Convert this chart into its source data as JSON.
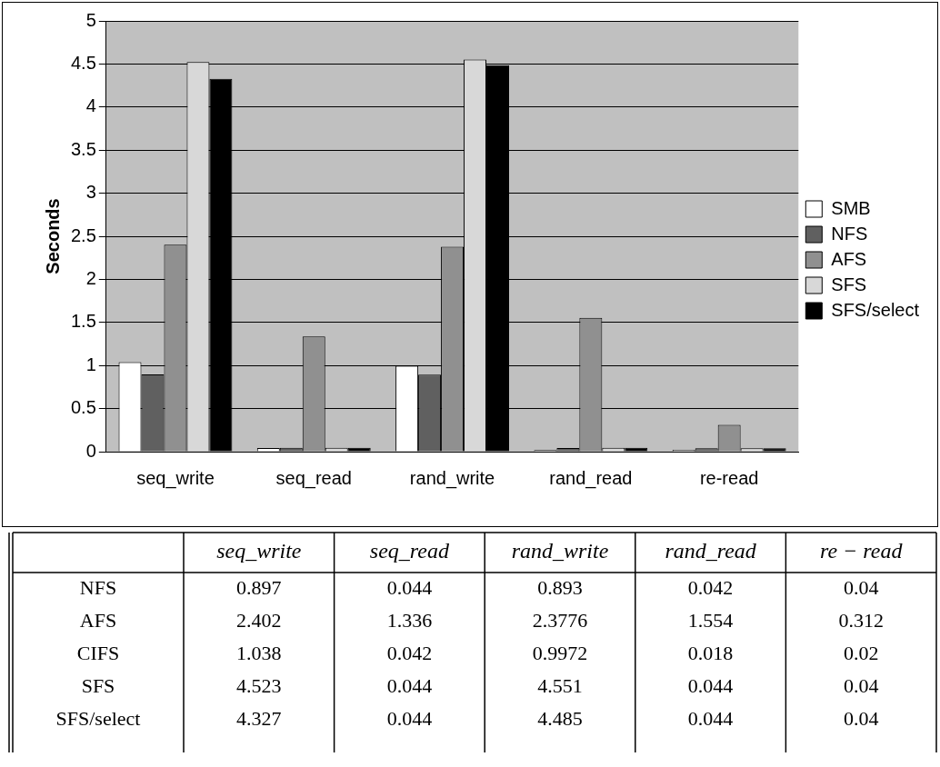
{
  "chart_data": [
    {
      "type": "bar",
      "categories": [
        "seq_write",
        "seq_read",
        "rand_write",
        "rand_read",
        "re-read"
      ],
      "ylabel": "Seconds",
      "ylim": [
        0,
        5
      ],
      "yticks": [
        0,
        0.5,
        1,
        1.5,
        2,
        2.5,
        3,
        3.5,
        4,
        4.5,
        5
      ],
      "grid": "y",
      "legend": "right",
      "series": [
        {
          "name": "SMB",
          "color": "#ffffff",
          "values": [
            1.038,
            0.042,
            0.9972,
            0.018,
            0.02
          ]
        },
        {
          "name": "NFS",
          "color": "#606060",
          "values": [
            0.897,
            0.044,
            0.893,
            0.042,
            0.04
          ]
        },
        {
          "name": "AFS",
          "color": "#909090",
          "values": [
            2.402,
            1.336,
            2.3776,
            1.554,
            0.312
          ]
        },
        {
          "name": "SFS",
          "color": "#d8d8d8",
          "values": [
            4.523,
            0.044,
            4.551,
            0.044,
            0.04
          ]
        },
        {
          "name": "SFS/select",
          "color": "#000000",
          "values": [
            4.327,
            0.044,
            4.485,
            0.044,
            0.04
          ]
        }
      ]
    },
    {
      "type": "heatmap",
      "data_labels": true,
      "categories": [
        "seq_write",
        "seq_read",
        "rand_write",
        "rand_read",
        "re − read"
      ],
      "y_categories": [
        "NFS",
        "AFS",
        "CIFS",
        "SFS",
        "SFS/select"
      ],
      "cells": [
        [
          0.897,
          0.044,
          0.893,
          0.042,
          0.04
        ],
        [
          2.402,
          1.336,
          2.3776,
          1.554,
          0.312
        ],
        [
          1.038,
          0.042,
          0.9972,
          0.018,
          0.02
        ],
        [
          4.523,
          0.044,
          4.551,
          0.044,
          0.04
        ],
        [
          4.327,
          0.044,
          4.485,
          0.044,
          0.04
        ]
      ]
    }
  ]
}
